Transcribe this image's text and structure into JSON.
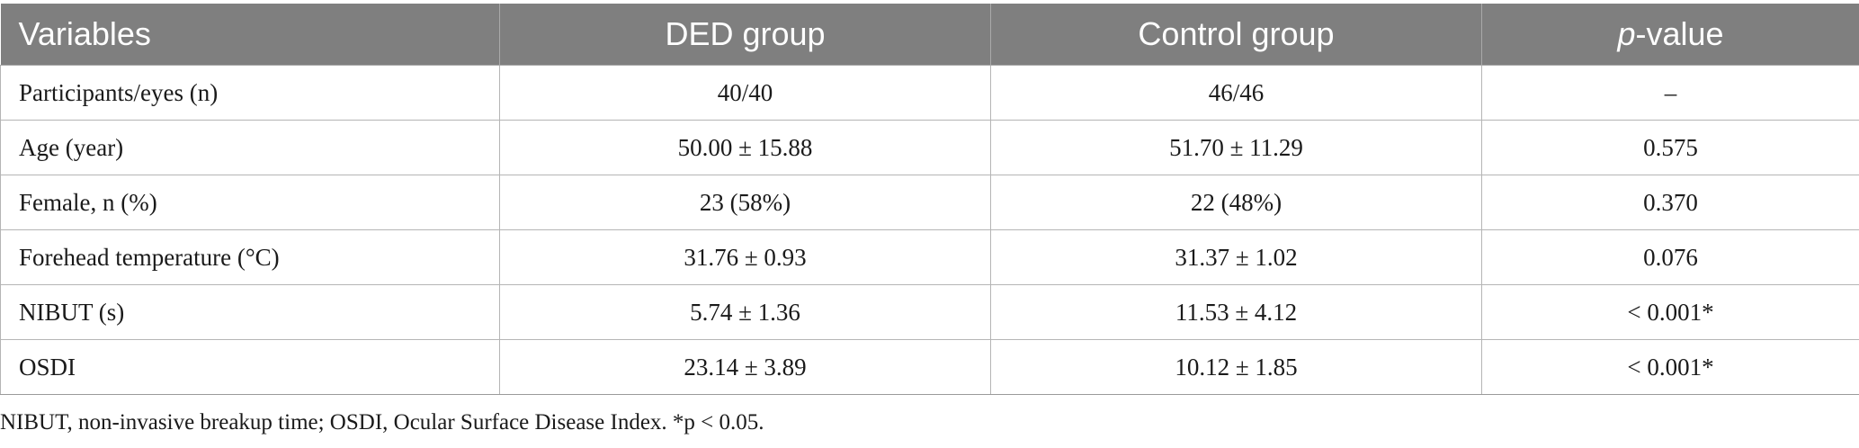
{
  "table": {
    "headers": {
      "variables": "Variables",
      "ded_group": "DED group",
      "control_group": "Control group",
      "p_italic": "p",
      "p_suffix": "-value"
    },
    "rows": [
      {
        "variable": "Participants/eyes (n)",
        "ded": "40/40",
        "control": "46/46",
        "p": "–"
      },
      {
        "variable": "Age (year)",
        "ded": "50.00 ± 15.88",
        "control": "51.70 ± 11.29",
        "p": "0.575"
      },
      {
        "variable": "Female, n (%)",
        "ded": "23 (58%)",
        "control": "22 (48%)",
        "p": "0.370"
      },
      {
        "variable": "Forehead temperature (°C)",
        "ded": "31.76 ± 0.93",
        "control": "31.37 ± 1.02",
        "p": "0.076"
      },
      {
        "variable": "NIBUT (s)",
        "ded": "5.74 ± 1.36",
        "control": "11.53 ± 4.12",
        "p": "< 0.001*"
      },
      {
        "variable": "OSDI",
        "ded": "23.14 ± 3.89",
        "control": "10.12 ± 1.85",
        "p": "< 0.001*"
      }
    ]
  },
  "footnote": "NIBUT, non-invasive breakup time; OSDI, Ocular Surface Disease Index. *p < 0.05.",
  "colors": {
    "header_background": "#7f7f7f",
    "header_text": "#ffffff",
    "grid_lines": "#b5b5b5"
  }
}
